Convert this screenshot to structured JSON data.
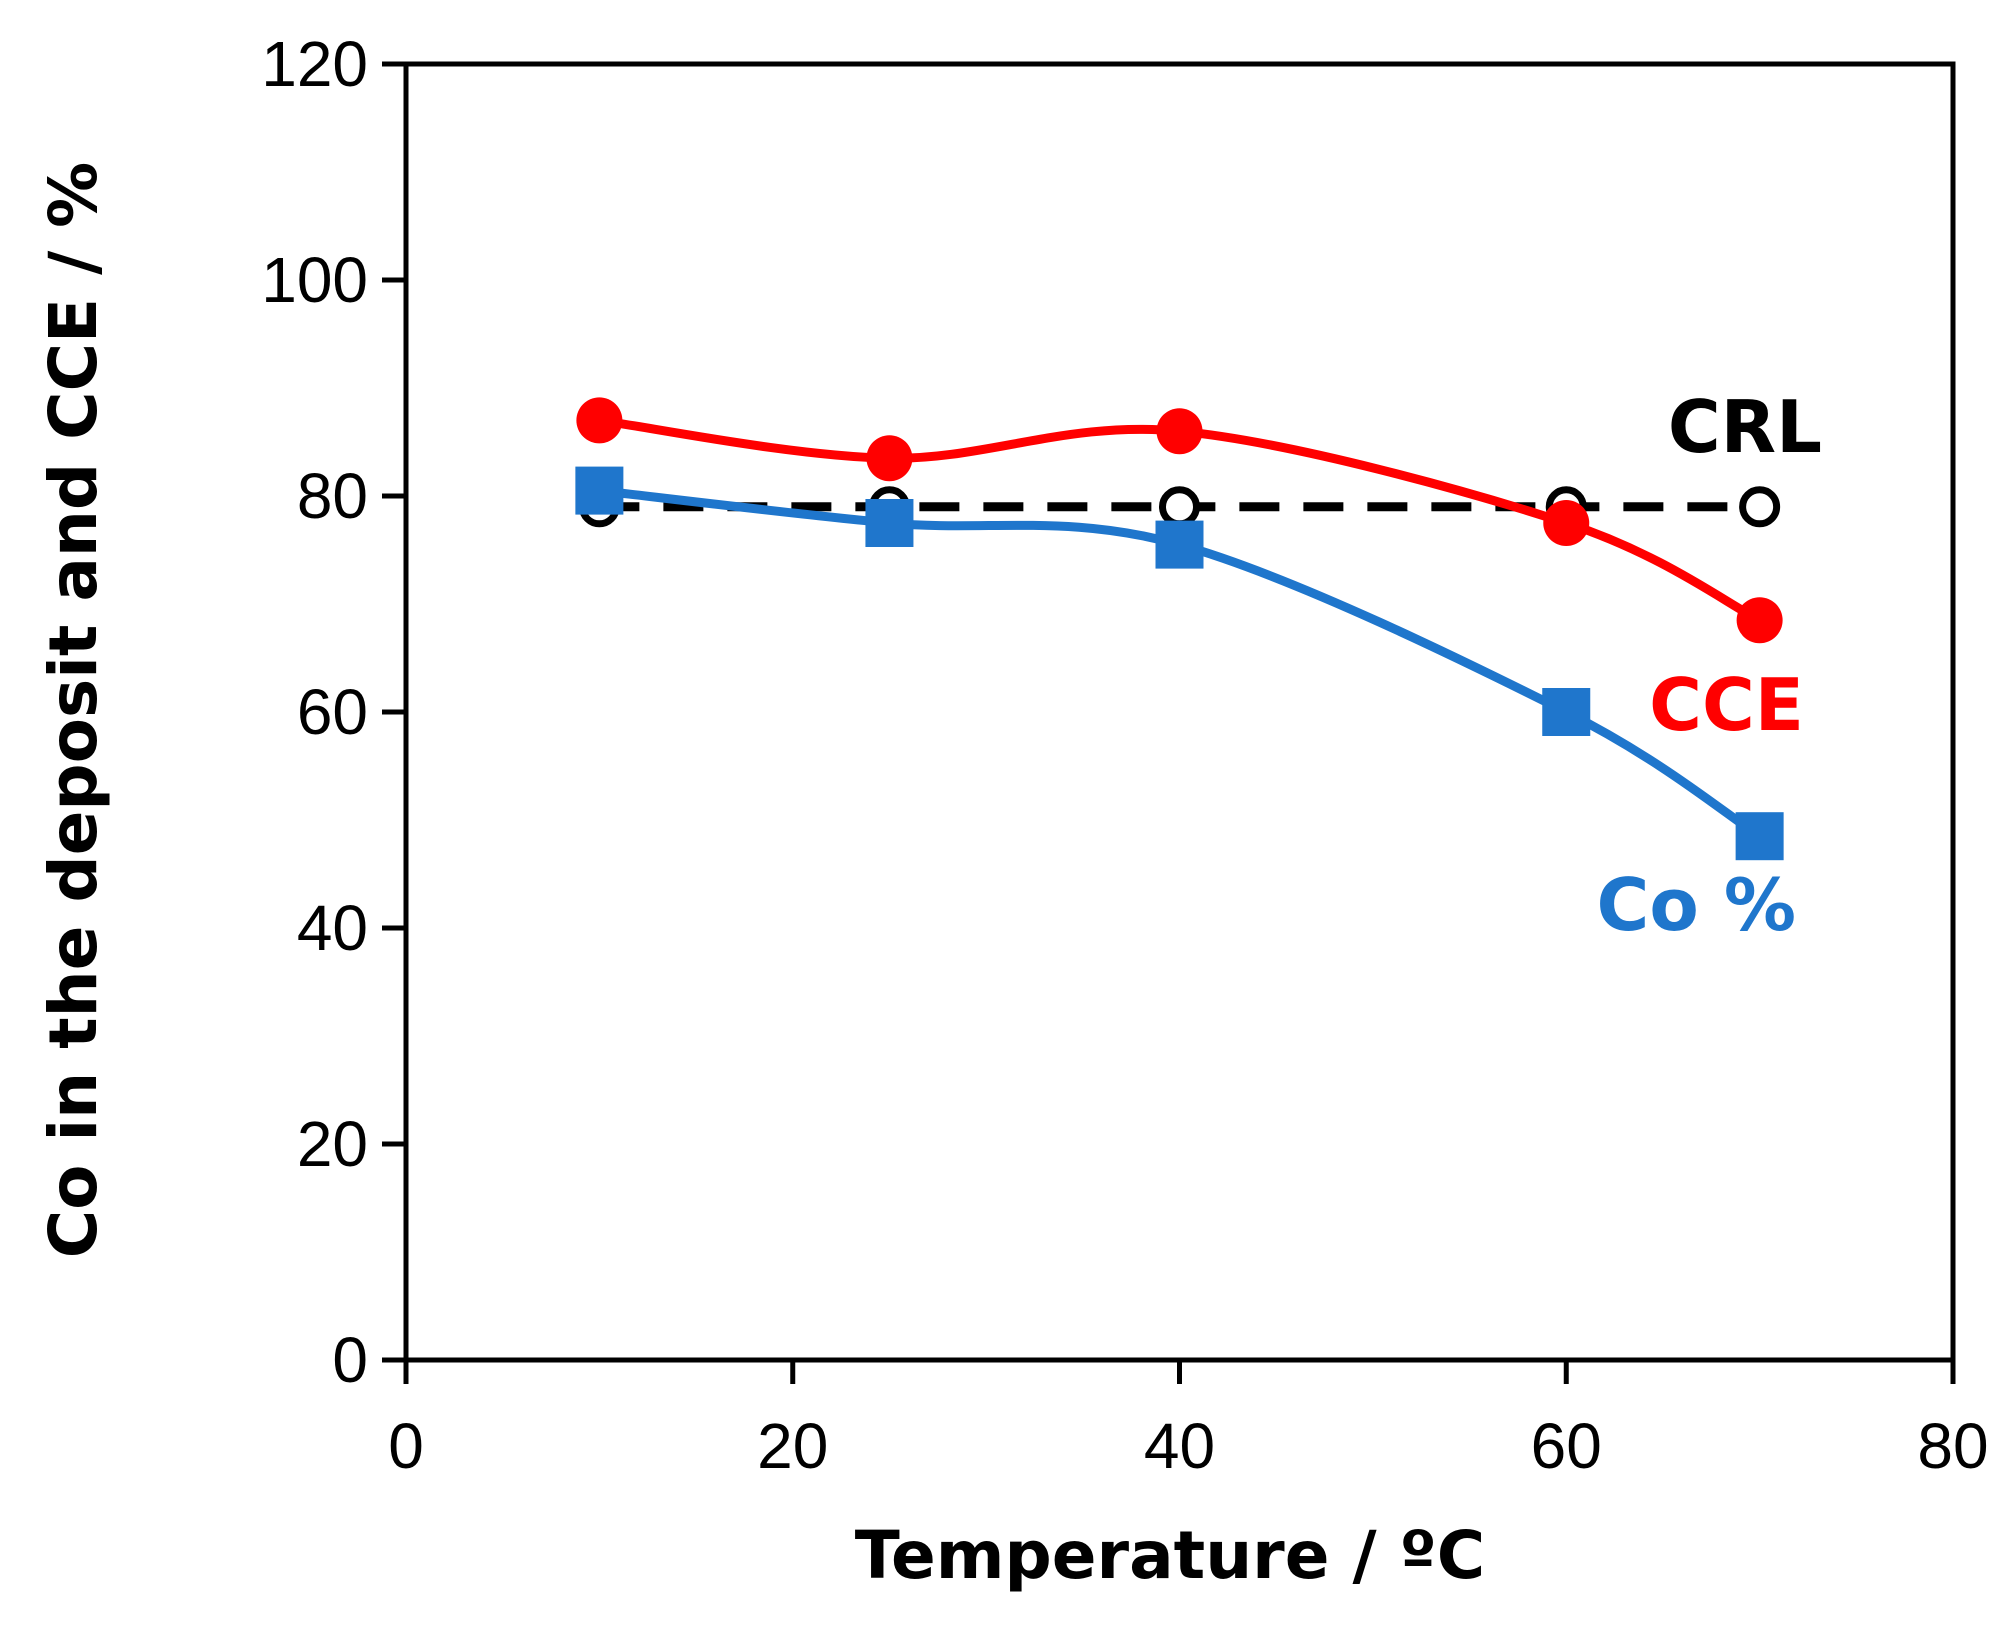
{
  "chart_data": {
    "type": "line",
    "title": "",
    "xlabel": "Temperature / ºC",
    "ylabel": "Co in the deposit and CCE / %",
    "xlim": [
      0,
      80
    ],
    "ylim": [
      0,
      120
    ],
    "xticks": [
      0,
      20,
      40,
      60,
      80
    ],
    "yticks": [
      0,
      20,
      40,
      60,
      80,
      100,
      120
    ],
    "grid": false,
    "legend": "inline labels at right end of each series",
    "series": [
      {
        "name": "CCE",
        "label": "CCE",
        "color": "#ff0000",
        "marker": "filled-circle",
        "line": "solid-smooth",
        "x": [
          10,
          25,
          40,
          60,
          70
        ],
        "y": [
          87,
          83.5,
          86,
          77.5,
          68.5
        ]
      },
      {
        "name": "Co %",
        "label": "Co %",
        "color": "#1f76cc",
        "marker": "filled-square",
        "line": "solid-smooth",
        "x": [
          10,
          25,
          40,
          60,
          70
        ],
        "y": [
          80.5,
          77.5,
          75.5,
          60,
          48.5
        ]
      },
      {
        "name": "CRL",
        "label": "CRL",
        "color": "#000000",
        "marker": "open-circle",
        "line": "dashed",
        "x": [
          10,
          25,
          40,
          60,
          70
        ],
        "y": [
          79,
          79,
          79,
          79,
          79
        ]
      }
    ]
  }
}
